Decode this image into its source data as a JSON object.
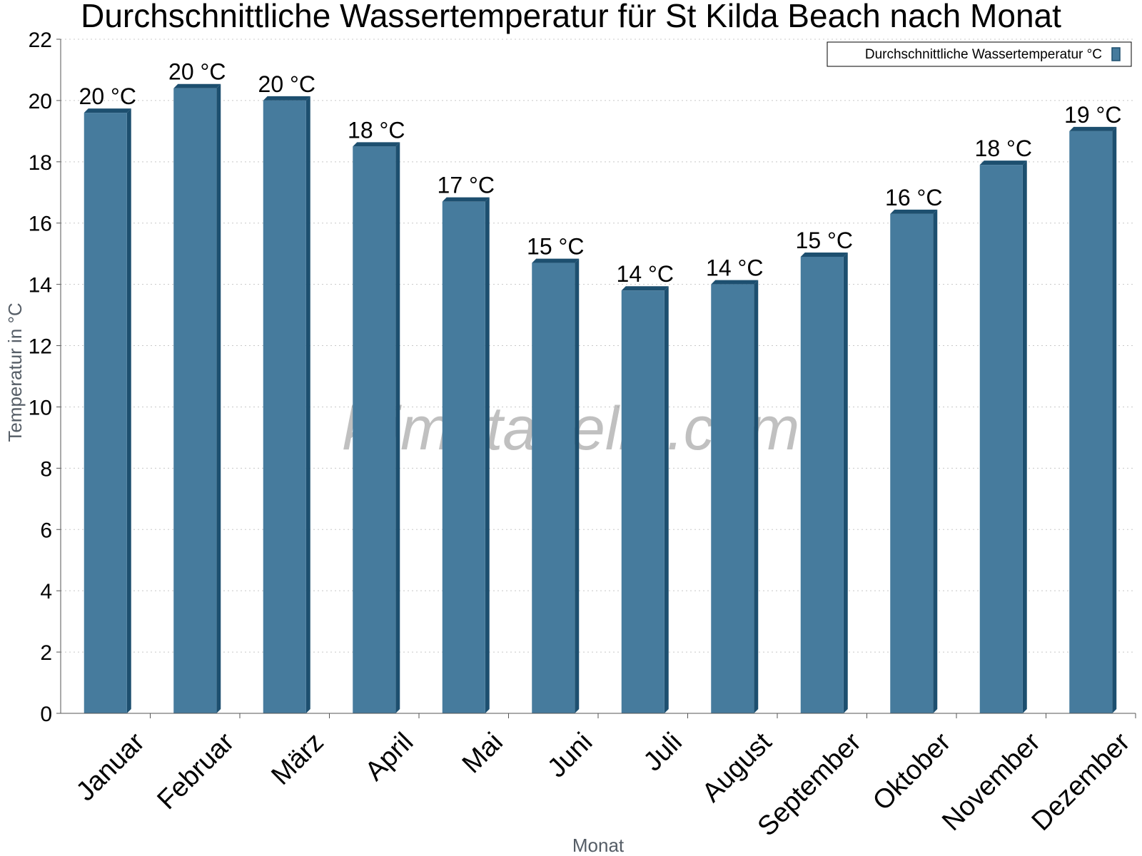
{
  "watermark": "klimatabelle.com",
  "colors": {
    "bar_face": "#467b9d",
    "bar_side": "#1d4f6f",
    "grid": "#c8c8c8",
    "axis": "#555555"
  },
  "chart_data": {
    "type": "bar",
    "title": "Durchschnittliche Wassertemperatur für St Kilda Beach nach Monat",
    "xlabel": "Monat",
    "ylabel": "Temperatur in °C",
    "ylim": [
      0,
      22
    ],
    "yticks": [
      0,
      2,
      4,
      6,
      8,
      10,
      12,
      14,
      16,
      18,
      20,
      22
    ],
    "grid": "horizontal dotted",
    "legend_position": "top-right",
    "categories": [
      "Januar",
      "Februar",
      "März",
      "April",
      "Mai",
      "Juni",
      "Juli",
      "August",
      "September",
      "Oktober",
      "November",
      "Dezember"
    ],
    "series": [
      {
        "name": "Durchschnittliche Wassertemperatur °C",
        "values": [
          19.6,
          20.4,
          20.0,
          18.5,
          16.7,
          14.7,
          13.8,
          14.0,
          14.9,
          16.3,
          17.9,
          19.0
        ],
        "labels": [
          "20 °C",
          "20 °C",
          "20 °C",
          "18 °C",
          "17 °C",
          "15 °C",
          "14 °C",
          "14 °C",
          "15 °C",
          "16 °C",
          "18 °C",
          "19 °C"
        ]
      }
    ]
  }
}
